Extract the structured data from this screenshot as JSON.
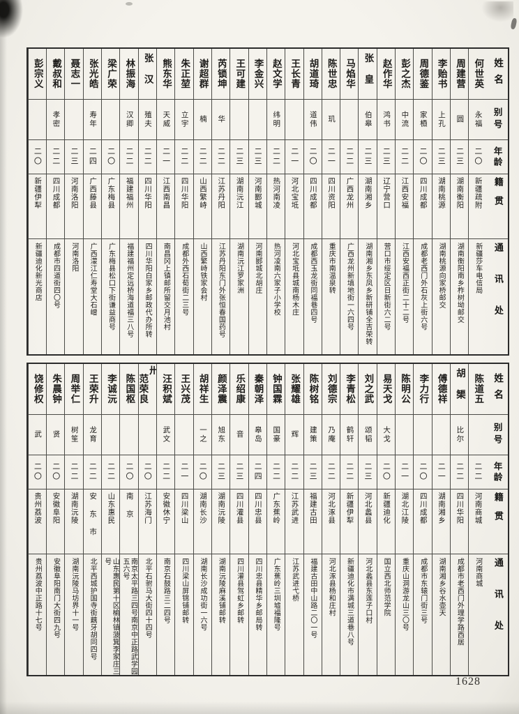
{
  "page": {
    "page_number": "1628",
    "headers": [
      "姓名",
      "别号",
      "年龄",
      "籍贯",
      "通讯处"
    ]
  },
  "tables": [
    {
      "entries": [
        {
          "name": "何世英",
          "alias": "永福",
          "age": "二〇",
          "origin": "新疆疏附",
          "address": "新疆莎车电信局"
        },
        {
          "name": "周建营",
          "alias": "圆",
          "age": "二三",
          "origin": "湖南衡阳",
          "address": "湖南衡阳南乡柞树坳邮交"
        },
        {
          "name": "李贻书",
          "alias": "上孔",
          "age": "二三",
          "origin": "湖南桃源",
          "address": "湖南桃源向家桥邮交"
        },
        {
          "name": "周德鉴",
          "alias": "家槱",
          "age": "二〇",
          "origin": "四川成都",
          "address": "成都老西门外石灰上街六号"
        },
        {
          "name": "彭之杰",
          "alias": "中流",
          "age": "二二",
          "origin": "江西安福",
          "address": "江西安福西正街二十二号"
        },
        {
          "name": "赵作华",
          "alias": "鸿书",
          "age": "二三",
          "origin": "辽宁营口",
          "address": "营口市绥定区日新街六二号"
        },
        {
          "name": "张皇",
          "alias": "伯皋",
          "age": "二三",
          "origin": "湖南湘乡",
          "address": "湖南湘乡东凤乡新研铺全吉荣转"
        },
        {
          "name": "马焰华",
          "alias": "",
          "age": "二二",
          "origin": "广西龙州",
          "address": "广西龙州新填地街一六四号"
        },
        {
          "name": "陈世忠",
          "alias": "玑",
          "age": "二一",
          "origin": "四川资阳",
          "address": "重庆市南温泉转"
        },
        {
          "name": "胡道琦",
          "alias": "道伟",
          "age": "二〇",
          "origin": "四川成都",
          "address": "成都西玉龙街同福巷四号"
        },
        {
          "name": "王长青",
          "alias": "",
          "age": "二一",
          "origin": "河北宝坻",
          "address": "河北宝坻县城南杨木庄"
        },
        {
          "name": "赵文学",
          "alias": "纬明",
          "age": "二二",
          "origin": "热河南凌",
          "address": "热河凌南六家子小学校"
        },
        {
          "name": "李金兴",
          "alias": "",
          "age": "二三",
          "origin": "河南郾城",
          "address": "河南郾城北胡庄"
        },
        {
          "name": "王可建",
          "alias": "",
          "age": "二三",
          "origin": "湖南沅江",
          "address": "湖南沅江罗家洲"
        },
        {
          "name": "芮锁坤",
          "alias": "华",
          "age": "二二",
          "origin": "江苏丹阳",
          "address": "江苏丹阳东门外张恒春国药号"
        },
        {
          "name": "谢超群",
          "alias": "楠",
          "age": "二二",
          "origin": "山西繁峙",
          "address": "山西繁峙铁家会村"
        },
        {
          "name": "朱正堃",
          "alias": "立宇",
          "age": "二二",
          "origin": "四川华阳",
          "address": "成都外西石荀街二三号"
        },
        {
          "name": "熊东华",
          "alias": "天威",
          "age": "二一",
          "origin": "江西南昌",
          "address": "南昌冈上镇邮所留交月池村"
        },
        {
          "name": "张汉",
          "alias": "殖夫",
          "age": "二二",
          "origin": "四川华阳",
          "address": "四川华阳白家乡邮政代办所转"
        },
        {
          "name": "林振海",
          "alias": "汉卿",
          "age": "二二",
          "origin": "福建福州",
          "address": "福建福州定远桥海道福三八号"
        },
        {
          "name": "梁广荣",
          "alias": "",
          "age": "二〇",
          "origin": "广东梅县",
          "address": "广东梅县松口下街谦益商号"
        },
        {
          "name": "张光皓",
          "alias": "寿年",
          "age": "二四",
          "origin": "广西藤县",
          "address": "广西濛江仁寿堂大石嶒"
        },
        {
          "name": "聂志一",
          "alias": "",
          "age": "二三",
          "origin": "河南洛阳",
          "address": "河南洛阳"
        },
        {
          "name": "戴叔和",
          "alias": "孝密",
          "age": "二二",
          "origin": "四川成都",
          "address": "成都市四道街四〇号"
        },
        {
          "name": "彭宗义",
          "alias": "",
          "age": "二〇",
          "origin": "新疆伊犁",
          "address": "新疆迪化新光商店"
        }
      ]
    },
    {
      "entries": [
        {
          "name": "陈道五",
          "alias": "",
          "age": "二二",
          "origin": "河南商城",
          "address": "河南商城"
        },
        {
          "name": "胡榘",
          "alias": "比尔",
          "age": "二二",
          "origin": "四川华阳",
          "address": "成都市老西门外理学路西居"
        },
        {
          "name": "傅德祥",
          "alias": "",
          "age": "二一",
          "origin": "湖南湘乡",
          "address": "湖南湘乡谷水壶天"
        },
        {
          "name": "李力行",
          "alias": "",
          "age": "二〇",
          "origin": "四川成都",
          "address": "成都市东辕门街三号"
        },
        {
          "name": "陈明公",
          "alias": "",
          "age": "二一",
          "origin": "湖北江陵",
          "address": "重庆山洞游龙山三〇号"
        },
        {
          "name": "易天戈",
          "alias": "大戈",
          "age": "二〇",
          "origin": "新疆迪化",
          "address": "国立西北师范学院"
        },
        {
          "name": "刘之武",
          "alias": "颂韬",
          "age": "二三",
          "origin": "河北蠡县",
          "address": "河北蠡县东莲子口村"
        },
        {
          "name": "李青松",
          "alias": "鹤轩",
          "age": "二二",
          "origin": "新疆伊犁",
          "address": "新疆迪化市满城三道巷八号"
        },
        {
          "name": "刘德宗",
          "alias": "乃庵",
          "age": "二二",
          "origin": "河北涿县",
          "address": "河北涿县杨和庄村"
        },
        {
          "name": "陈树铭",
          "alias": "建策",
          "age": "二三",
          "origin": "福建古田",
          "address": "福建古田中山路二〇一号"
        },
        {
          "name": "张耀雄",
          "alias": "辉",
          "age": "二二",
          "origin": "江苏武进",
          "address": "江苏武进弋桥"
        },
        {
          "name": "钟国霖",
          "alias": "国豪",
          "age": "二二",
          "origin": "广东蕉岭",
          "address": "广东蕉岭三圳墟福隆号"
        },
        {
          "name": "秦朝泽",
          "alias": "皋岛",
          "age": "二四",
          "origin": "四川忠县",
          "address": "四川忠县精华乡邮局转"
        },
        {
          "name": "乐绍康",
          "alias": "音",
          "age": "二三",
          "origin": "四川灌县",
          "address": "四川灌县驾虹乡邮转"
        },
        {
          "name": "颜泽震",
          "alias": "旭东",
          "age": "二三",
          "origin": "湖南沅陵",
          "address": "湖南沅陵麻溪铺邮转"
        },
        {
          "name": "胡祥生",
          "alias": "一之",
          "age": "二〇",
          "origin": "湖南长沙",
          "address": "湖南长沙成功街一六号"
        },
        {
          "name": "王兴茂",
          "alias": "",
          "age": "二一",
          "origin": "四川梁山",
          "address": "四川梁山屏锦铺邮转"
        },
        {
          "name": "汪积斌",
          "alias": "武文",
          "age": "二二",
          "origin": "安徽休宁",
          "address": "南京石鼓路三二四号"
        },
        {
          "name": "范荣良",
          "note": "卅",
          "alias": "",
          "age": "二〇",
          "origin": "江苏海门",
          "address": "北平石驸马大街四十四号"
        },
        {
          "name": "陈国枢",
          "alias": "",
          "age": "二〇",
          "origin": "南京",
          "address": "南京太平路三四号南京中正路武学园五六号"
        },
        {
          "name": "李诚沅",
          "alias": "",
          "age": "二二",
          "origin": "山东惠民",
          "address": "山东惠民第十区榆林镇菠箕李家庄三号"
        },
        {
          "name": "王荣升",
          "alias": "龙育",
          "age": "二二",
          "origin": "安东市",
          "address": "北平西城护国寺街藕牙胡同四号"
        },
        {
          "name": "周举仁",
          "alias": "树笙",
          "age": "二二",
          "origin": "湖南沅陵",
          "address": "湖南沅陵马坊界十一号"
        },
        {
          "name": "朱晨钟",
          "alias": "贤",
          "age": "二〇",
          "origin": "安徽阜阳",
          "address": "安徽阜阳南门大街四九号"
        },
        {
          "name": "饶修权",
          "alias": "武",
          "age": "二〇",
          "origin": "贵州荔波",
          "address": "贵州荔波中正路十七号"
        }
      ]
    }
  ]
}
